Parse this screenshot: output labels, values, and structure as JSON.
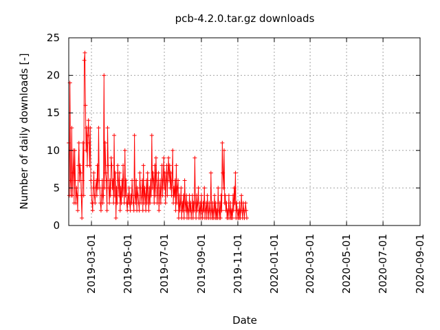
{
  "chart_data": {
    "type": "line",
    "title": "pcb-4.2.0.tar.gz downloads",
    "xlabel": "Date",
    "ylabel": "Number of daily downloads [-]",
    "xlim": [
      "2019-01-22",
      "2020-09-01"
    ],
    "ylim": [
      0,
      25
    ],
    "y_ticks": [
      0,
      5,
      10,
      15,
      20,
      25
    ],
    "x_ticks": [
      "2019-03-01",
      "2019-05-01",
      "2019-07-01",
      "2019-09-01",
      "2019-11-01",
      "2020-01-01",
      "2020-03-01",
      "2020-05-01",
      "2020-07-01",
      "2020-09-01"
    ],
    "grid": true,
    "legend": "none",
    "series_color": "#ff0000",
    "start_date": "2019-01-22",
    "series": [
      {
        "values": [
          11,
          4,
          19,
          6,
          4,
          13,
          4,
          7,
          10,
          3,
          10,
          6,
          3,
          5,
          4,
          2,
          8,
          11,
          6,
          8,
          7,
          4,
          1,
          6,
          11,
          4,
          22,
          23,
          16,
          10,
          13,
          8,
          12,
          14,
          11,
          8,
          13,
          6,
          4,
          3,
          2,
          5,
          7,
          4,
          3,
          5,
          6,
          4,
          8,
          5,
          13,
          6,
          5,
          3,
          2,
          4,
          6,
          3,
          4,
          20,
          5,
          11,
          7,
          6,
          2,
          13,
          8,
          5,
          3,
          6,
          4,
          9,
          8,
          5,
          6,
          3,
          12,
          4,
          7,
          1,
          5,
          3,
          8,
          6,
          4,
          7,
          2,
          5,
          3,
          6,
          4,
          8,
          5,
          3,
          10,
          4,
          6,
          3,
          2,
          4,
          3,
          5,
          3,
          2,
          4,
          3,
          6,
          4,
          3,
          2,
          12,
          4,
          3,
          6,
          2,
          5,
          4,
          3,
          2,
          7,
          5,
          3,
          4,
          6,
          2,
          8,
          3,
          5,
          4,
          2,
          6,
          3,
          7,
          4,
          2,
          5,
          3,
          6,
          4,
          12,
          5,
          7,
          6,
          3,
          8,
          4,
          9,
          6,
          3,
          5,
          7,
          2,
          4,
          6,
          3,
          5,
          8,
          4,
          6,
          9,
          5,
          7,
          3,
          6,
          8,
          4,
          7,
          9,
          6,
          8,
          5,
          7,
          4,
          6,
          10,
          3,
          5,
          4,
          6,
          2,
          8,
          3,
          5,
          6,
          1,
          4,
          2,
          3,
          5,
          1,
          3,
          2,
          4,
          1,
          6,
          3,
          2,
          4,
          1,
          3,
          2,
          1,
          4,
          2,
          3,
          1,
          2,
          4,
          1,
          3,
          2,
          9,
          3,
          1,
          4,
          2,
          3,
          5,
          1,
          2,
          3,
          1,
          4,
          2,
          1,
          3,
          2,
          5,
          1,
          2,
          3,
          1,
          4,
          2,
          1,
          3,
          2,
          1,
          7,
          2,
          1,
          3,
          1,
          2,
          4,
          1,
          3,
          1,
          2,
          1,
          5,
          2,
          1,
          3,
          1,
          4,
          2,
          11,
          7,
          5,
          10,
          3,
          4,
          2,
          3,
          1,
          2,
          1,
          4,
          2,
          1,
          3,
          1,
          2,
          1,
          4,
          2,
          5,
          3,
          7,
          1,
          3,
          2,
          1,
          2,
          1,
          3,
          1,
          2,
          4,
          2,
          1,
          3,
          2,
          1,
          2,
          3,
          2,
          1
        ]
      }
    ]
  }
}
